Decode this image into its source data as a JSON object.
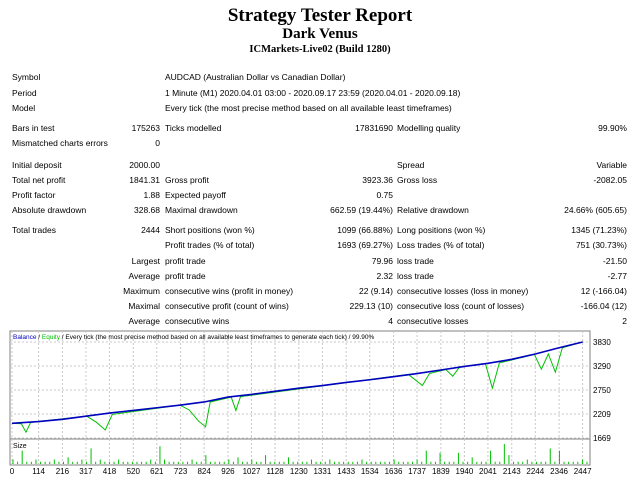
{
  "header": {
    "title": "Strategy Tester Report",
    "expert": "Dark Venus",
    "server": "ICMarkets-Live02 (Build 1280)"
  },
  "info": [
    {
      "label": "Symbol",
      "value": "AUDCAD (Australian Dollar vs Canadian Dollar)"
    },
    {
      "label": "Period",
      "value": "1 Minute (M1) 2020.04.01 03:00 - 2020.09.17 23:59 (2020.04.01 - 2020.09.18)"
    },
    {
      "label": "Model",
      "value": "Every tick (the most precise method based on all available least timeframes)"
    }
  ],
  "rows": [
    [
      "Bars in test",
      "175263",
      "Ticks modelled",
      "17831690",
      "Modelling quality",
      "99.90%"
    ],
    [
      "Mismatched charts errors",
      "0",
      "",
      "",
      "",
      ""
    ],
    [
      "Initial deposit",
      "2000.00",
      "",
      "",
      "Spread",
      "Variable"
    ],
    [
      "Total net profit",
      "1841.31",
      "Gross profit",
      "3923.36",
      "Gross loss",
      "-2082.05"
    ],
    [
      "Profit factor",
      "1.88",
      "Expected payoff",
      "0.75",
      "",
      ""
    ],
    [
      "Absolute drawdown",
      "328.68",
      "Maximal drawdown",
      "662.59 (19.44%)",
      "Relative drawdown",
      "24.66% (605.65)"
    ],
    [
      "Total trades",
      "2444",
      "Short positions (won %)",
      "1099 (66.88%)",
      "Long positions (won %)",
      "1345 (71.23%)"
    ],
    [
      "",
      "",
      "Profit trades (% of total)",
      "1693 (69.27%)",
      "Loss trades (% of total)",
      "751 (30.73%)"
    ],
    [
      "",
      "Largest",
      "profit trade",
      "79.96",
      "loss trade",
      "-21.50"
    ],
    [
      "",
      "Average",
      "profit trade",
      "2.32",
      "loss trade",
      "-2.77"
    ],
    [
      "",
      "Maximum",
      "consecutive wins (profit in money)",
      "22 (9.14)",
      "consecutive losses (loss in money)",
      "12 (-166.04)"
    ],
    [
      "",
      "Maximal",
      "consecutive profit (count of wins)",
      "229.13 (10)",
      "consecutive loss (count of losses)",
      "-166.04 (12)"
    ],
    [
      "",
      "Average",
      "consecutive wins",
      "4",
      "consecutive losses",
      "2"
    ]
  ],
  "chart_data": {
    "type": "line",
    "legend": {
      "balance": "Balance",
      "sep1": " / ",
      "equity": "Equity",
      "rest": " / Every tick (the most precise method based on all available least timeframes to generate each tick) / 99.90%"
    },
    "size_label": "Size",
    "colors": {
      "balance": "#0000c0",
      "equity": "#00c000",
      "size": "#00c000",
      "grid": "#c8c8c8"
    },
    "grid": true,
    "xlim": [
      0,
      2470
    ],
    "ylim": [
      1669,
      3900
    ],
    "yticks": [
      3830,
      3290,
      2750,
      2209,
      1669
    ],
    "xticks": [
      0,
      114,
      216,
      317,
      418,
      520,
      621,
      723,
      824,
      926,
      1027,
      1128,
      1230,
      1331,
      1433,
      1534,
      1636,
      1737,
      1839,
      1940,
      2041,
      2143,
      2244,
      2346,
      2447
    ],
    "balance": [
      [
        0,
        2000
      ],
      [
        114,
        2040
      ],
      [
        216,
        2090
      ],
      [
        317,
        2160
      ],
      [
        418,
        2230
      ],
      [
        520,
        2290
      ],
      [
        621,
        2350
      ],
      [
        723,
        2410
      ],
      [
        824,
        2480
      ],
      [
        926,
        2590
      ],
      [
        1027,
        2650
      ],
      [
        1128,
        2720
      ],
      [
        1230,
        2790
      ],
      [
        1331,
        2850
      ],
      [
        1433,
        2920
      ],
      [
        1534,
        2980
      ],
      [
        1636,
        3050
      ],
      [
        1737,
        3120
      ],
      [
        1839,
        3200
      ],
      [
        1940,
        3280
      ],
      [
        2041,
        3350
      ],
      [
        2143,
        3440
      ],
      [
        2244,
        3560
      ],
      [
        2346,
        3700
      ],
      [
        2447,
        3830
      ]
    ],
    "equity": [
      [
        0,
        2000
      ],
      [
        40,
        1990
      ],
      [
        60,
        1800
      ],
      [
        80,
        2020
      ],
      [
        114,
        2040
      ],
      [
        320,
        2160
      ],
      [
        360,
        2030
      ],
      [
        400,
        1850
      ],
      [
        430,
        2200
      ],
      [
        720,
        2410
      ],
      [
        760,
        2300
      ],
      [
        800,
        2050
      ],
      [
        830,
        1920
      ],
      [
        850,
        2480
      ],
      [
        940,
        2590
      ],
      [
        960,
        2290
      ],
      [
        980,
        2600
      ],
      [
        1700,
        3100
      ],
      [
        1760,
        2850
      ],
      [
        1790,
        3120
      ],
      [
        1860,
        3210
      ],
      [
        1890,
        3060
      ],
      [
        1920,
        3270
      ],
      [
        2030,
        3340
      ],
      [
        2060,
        2790
      ],
      [
        2090,
        3360
      ],
      [
        2240,
        3550
      ],
      [
        2270,
        3220
      ],
      [
        2300,
        3560
      ],
      [
        2330,
        3150
      ],
      [
        2360,
        3700
      ],
      [
        2447,
        3830
      ]
    ],
    "size": [
      2,
      1,
      6,
      1,
      1,
      2,
      1,
      1,
      1,
      2,
      1,
      1,
      3,
      1,
      1,
      2,
      1,
      7,
      1,
      2,
      1,
      1,
      1,
      2,
      1,
      1,
      1,
      1,
      1,
      1,
      2,
      1,
      8,
      2,
      1,
      1,
      1,
      1,
      1,
      2,
      1,
      1,
      4,
      1,
      1,
      1,
      1,
      2,
      1,
      3,
      1,
      1,
      2,
      1,
      1,
      4,
      1,
      1,
      1,
      1,
      3,
      1,
      1,
      1,
      1,
      2,
      1,
      1,
      1,
      2,
      1,
      1,
      1,
      1,
      1,
      1,
      2,
      1,
      1,
      1,
      1,
      1,
      1,
      2,
      1,
      1,
      1,
      1,
      2,
      1,
      6,
      1,
      1,
      5,
      1,
      1,
      1,
      5,
      1,
      1,
      3,
      1,
      1,
      1,
      6,
      1,
      1,
      9,
      4,
      1,
      1,
      1,
      2,
      1,
      1,
      1,
      1,
      7,
      1,
      6,
      1,
      1,
      1,
      1,
      2,
      1
    ]
  }
}
